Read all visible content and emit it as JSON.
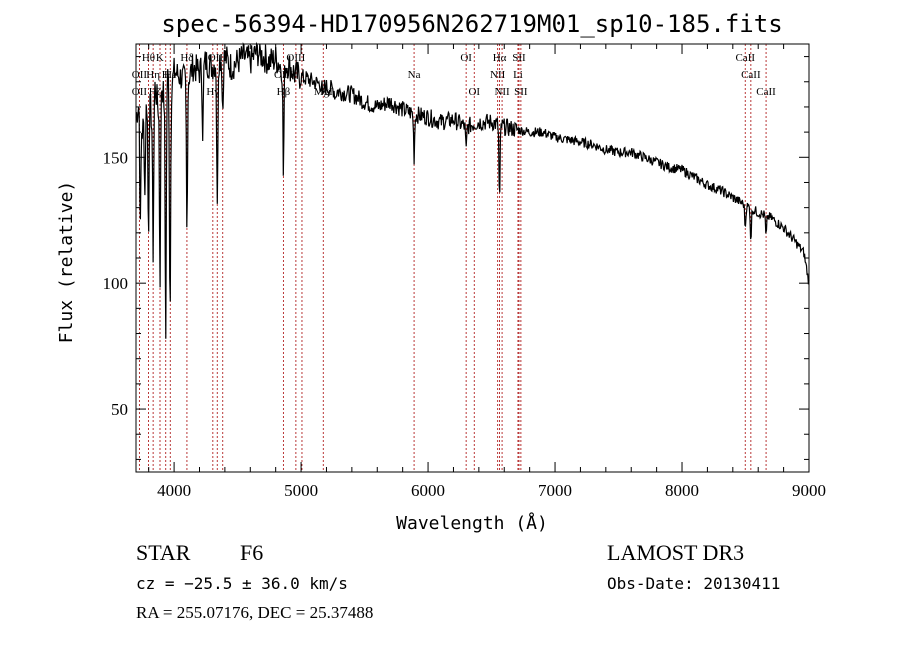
{
  "chart_data": {
    "type": "line",
    "title": "spec-56394-HD170956N262719M01_sp10-185.fits",
    "xlabel": "Wavelength (Å)",
    "ylabel": "Flux (relative)",
    "xlim": [
      3700,
      9000
    ],
    "ylim": [
      25,
      195
    ],
    "xticks": [
      4000,
      5000,
      6000,
      7000,
      8000,
      9000
    ],
    "yticks": [
      50,
      100,
      150
    ],
    "series": [
      {
        "name": "spectrum",
        "x": [
          3700,
          3725,
          3750,
          3775,
          3800,
          3825,
          3850,
          3875,
          3900,
          3925,
          3950,
          3975,
          4000,
          4050,
          4100,
          4150,
          4200,
          4250,
          4300,
          4350,
          4400,
          4450,
          4500,
          4550,
          4600,
          4650,
          4700,
          4750,
          4800,
          4850,
          4900,
          4950,
          5000,
          5100,
          5200,
          5300,
          5400,
          5500,
          5600,
          5700,
          5800,
          5900,
          6000,
          6100,
          6200,
          6300,
          6400,
          6500,
          6600,
          6700,
          6800,
          6900,
          7000,
          7100,
          7200,
          7300,
          7400,
          7500,
          7600,
          7700,
          7800,
          7900,
          8000,
          8100,
          8200,
          8300,
          8400,
          8500,
          8600,
          8700,
          8800,
          8900,
          8960,
          9000
        ],
        "y": [
          166,
          172,
          160,
          170,
          175,
          165,
          178,
          170,
          180,
          172,
          182,
          176,
          184,
          182,
          180,
          186,
          184,
          188,
          186,
          189,
          190,
          186,
          188,
          190,
          188,
          192,
          190,
          188,
          189,
          186,
          187,
          183,
          182,
          180,
          178,
          176,
          175,
          172,
          170,
          172,
          169,
          167,
          166,
          164,
          165,
          162,
          164,
          164,
          162,
          161,
          160,
          160,
          158,
          157,
          156,
          155,
          153,
          152,
          152,
          150,
          148,
          146,
          145,
          142,
          139,
          137,
          134,
          131,
          128,
          126,
          122,
          116,
          112,
          100
        ]
      }
    ],
    "absorption_dips": [
      {
        "x": 3734,
        "y": 120
      },
      {
        "x": 3770,
        "y": 135
      },
      {
        "x": 3798,
        "y": 118
      },
      {
        "x": 3835,
        "y": 112
      },
      {
        "x": 3889,
        "y": 100
      },
      {
        "x": 3934,
        "y": 78
      },
      {
        "x": 3968,
        "y": 84
      },
      {
        "x": 4101,
        "y": 120
      },
      {
        "x": 4226,
        "y": 160
      },
      {
        "x": 4340,
        "y": 128
      },
      {
        "x": 4383,
        "y": 168
      },
      {
        "x": 4861,
        "y": 142
      },
      {
        "x": 5173,
        "y": 172
      },
      {
        "x": 5270,
        "y": 174
      },
      {
        "x": 5890,
        "y": 150
      },
      {
        "x": 6300,
        "y": 152
      },
      {
        "x": 6563,
        "y": 131
      },
      {
        "x": 8498,
        "y": 122
      },
      {
        "x": 8542,
        "y": 117
      },
      {
        "x": 8662,
        "y": 118
      }
    ],
    "line_labels": [
      {
        "x": 3798,
        "row": 1,
        "text": "Hθ"
      },
      {
        "x": 3888,
        "row": 1,
        "text": "K"
      },
      {
        "x": 4101,
        "row": 1,
        "text": "Hδ"
      },
      {
        "x": 4340,
        "row": 1,
        "text": "OIII"
      },
      {
        "x": 4959,
        "row": 1,
        "text": "OIII"
      },
      {
        "x": 6300,
        "row": 1,
        "text": "OI"
      },
      {
        "x": 6563,
        "row": 1,
        "text": "Hα"
      },
      {
        "x": 6716,
        "row": 1,
        "text": "SII"
      },
      {
        "x": 8498,
        "row": 1,
        "text": "CaII"
      },
      {
        "x": 3727,
        "row": 2,
        "text": "OII"
      },
      {
        "x": 3835,
        "row": 2,
        "text": "Hη"
      },
      {
        "x": 3934,
        "row": 2,
        "text": "H"
      },
      {
        "x": 3970,
        "row": 2,
        "text": "Hε"
      },
      {
        "x": 4861,
        "row": 2,
        "text": "OIII"
      },
      {
        "x": 5890,
        "row": 2,
        "text": "Na"
      },
      {
        "x": 6548,
        "row": 2,
        "text": "NII"
      },
      {
        "x": 6708,
        "row": 2,
        "text": "Li"
      },
      {
        "x": 8542,
        "row": 2,
        "text": "CaII"
      },
      {
        "x": 3727,
        "row": 3,
        "text": "OII"
      },
      {
        "x": 3850,
        "row": 3,
        "text": "Hζ"
      },
      {
        "x": 4305,
        "row": 3,
        "text": "Hγ"
      },
      {
        "x": 4861,
        "row": 3,
        "text": "Hβ"
      },
      {
        "x": 5175,
        "row": 3,
        "text": "MgI"
      },
      {
        "x": 6364,
        "row": 3,
        "text": "OI"
      },
      {
        "x": 6583,
        "row": 3,
        "text": "NII"
      },
      {
        "x": 6731,
        "row": 3,
        "text": "SII"
      },
      {
        "x": 8662,
        "row": 3,
        "text": "CaII"
      }
    ],
    "marker_lines": [
      3727,
      3798,
      3835,
      3889,
      3934,
      3970,
      4101,
      4305,
      4340,
      4383,
      4861,
      4959,
      5007,
      5175,
      5890,
      6300,
      6364,
      6548,
      6563,
      6583,
      6708,
      6716,
      6731,
      8498,
      8542,
      8662
    ],
    "marker_color": "#b22222",
    "line_color": "#000000"
  },
  "info": {
    "object_class": "STAR",
    "subclass": "F6",
    "redshift_text": "cz = −25.5 ± 36.0 km/s",
    "coords_text": "RA = 255.07176, DEC =  25.37488",
    "survey": "LAMOST DR3",
    "obs_date": "Obs-Date: 20130411"
  }
}
